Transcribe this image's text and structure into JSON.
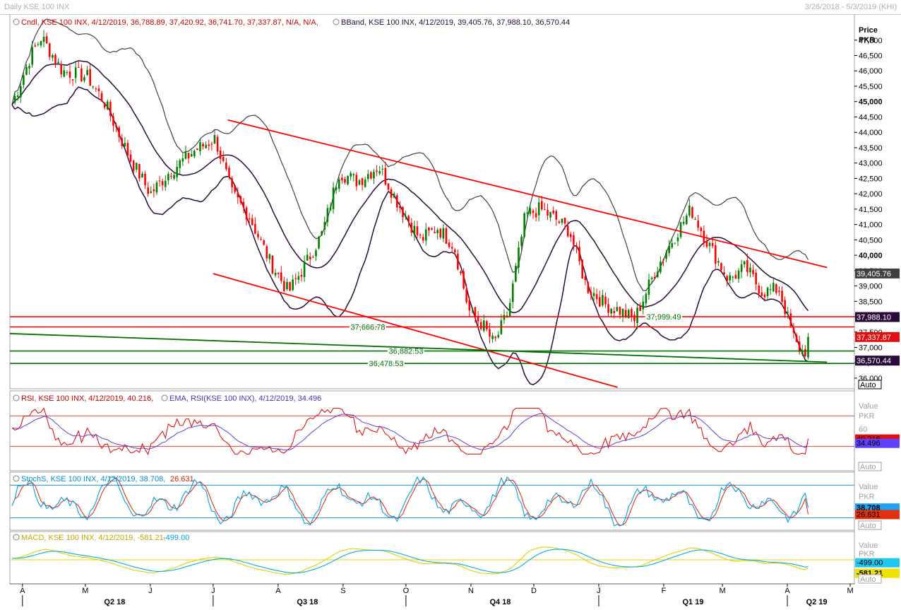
{
  "window": {
    "title": "Daily KSE 100 INX",
    "date_range": "3/26/2018 - 5/3/2019 (KHI)"
  },
  "panels": {
    "price": {
      "legend_cndl": "Cndl, KSE 100 INX, 4/12/2019, 36,788.89, 37,420.92, 36,741.70, 37,337.87, N/A, N/A,",
      "legend_bband": "BBand, KSE 100 INX, 4/12/2019, 39,405.76, 37,988.10, 36,570.44",
      "axis_label_1": "Price",
      "axis_label_2": "PKR",
      "auto_button": "Auto"
    },
    "rsi": {
      "legend_rsi": "RSI, KSE 100 INX, 4/12/2019, 40.216,",
      "legend_ema": "EMA, RSI(KSE 100 INX), 4/12/2019, 34.496",
      "axis_label_1": "Value",
      "axis_label_2": "PKR",
      "tick_60": "60",
      "auto_button": "Auto"
    },
    "stoch": {
      "legend": "StochS, KSE 100 INX, 4/12/2019, 38.708,",
      "legend_2": "26.631",
      "axis_label_1": "Value",
      "axis_label_2": "PKR",
      "auto_button": "Auto"
    },
    "macd": {
      "legend": "MACD, KSE 100 INX, 4/12/2019, -581.21,",
      "legend_2": "-499.00",
      "axis_label_1": "Value",
      "axis_label_2": "PKR",
      "auto_button": "Auto"
    }
  },
  "colors": {
    "up_candle": "#008000",
    "down_candle": "#ff0000",
    "bband_outer": "#404040",
    "bband_mid": "#2a0a3a",
    "trendline": "#ff0000",
    "support": "#007000",
    "rsi": "#e00000",
    "ema": "#6040d0",
    "stoch_k": "#00a0e0",
    "stoch_d": "#e02000",
    "macd": "#00b0e0",
    "signal": "#e0d000"
  },
  "chart_data": [
    {
      "type": "candlestick",
      "name": "Cndl",
      "ylim": [
        35700,
        47800
      ],
      "y_ticks": [
        "47,000",
        "46,500",
        "46,000",
        "45,500",
        "45,000",
        "44,500",
        "44,000",
        "43,500",
        "43,000",
        "42,500",
        "42,000",
        "41,500",
        "41,000",
        "40,500",
        "40,000",
        "39,500",
        "39,000",
        "38,500",
        "38,000",
        "37,500",
        "37,000",
        "36,500",
        "36,000"
      ],
      "last": {
        "date": "4/12/2019",
        "open": 36788.89,
        "high": 37420.92,
        "low": 36741.7,
        "close": 37337.87
      },
      "bband_last": {
        "upper": 39405.76,
        "middle": 37988.1,
        "lower": 36570.44
      },
      "value_labels": {
        "upper": "39,405.76",
        "middle": "37,988.10",
        "close": "37,337.87",
        "lower": "36,570.44"
      },
      "close_path_months": [
        [
          "2018-03-27",
          44900
        ],
        [
          "2018-04-05",
          46500
        ],
        [
          "2018-04-10",
          47100
        ],
        [
          "2018-04-20",
          46000
        ],
        [
          "2018-05-02",
          45800
        ],
        [
          "2018-05-10",
          45000
        ],
        [
          "2018-05-22",
          43200
        ],
        [
          "2018-06-01",
          42000
        ],
        [
          "2018-06-10",
          42700
        ],
        [
          "2018-06-22",
          43400
        ],
        [
          "2018-07-02",
          43800
        ],
        [
          "2018-07-10",
          42000
        ],
        [
          "2018-07-18",
          41300
        ],
        [
          "2018-07-28",
          39800
        ],
        [
          "2018-08-06",
          38800
        ],
        [
          "2018-08-14",
          39700
        ],
        [
          "2018-08-22",
          40700
        ],
        [
          "2018-08-30",
          42700
        ],
        [
          "2018-09-08",
          42400
        ],
        [
          "2018-09-18",
          42900
        ],
        [
          "2018-09-28",
          41600
        ],
        [
          "2018-10-08",
          40500
        ],
        [
          "2018-10-16",
          40900
        ],
        [
          "2018-10-24",
          40300
        ],
        [
          "2018-10-31",
          38200
        ],
        [
          "2018-11-07",
          37700
        ],
        [
          "2018-11-12",
          37100
        ],
        [
          "2018-11-19",
          38200
        ],
        [
          "2018-11-27",
          41300
        ],
        [
          "2018-12-04",
          41500
        ],
        [
          "2018-12-11",
          41200
        ],
        [
          "2018-12-18",
          40800
        ],
        [
          "2018-12-26",
          39000
        ],
        [
          "2019-01-04",
          38400
        ],
        [
          "2019-01-11",
          38200
        ],
        [
          "2019-01-18",
          37900
        ],
        [
          "2019-01-28",
          39500
        ],
        [
          "2019-02-06",
          40600
        ],
        [
          "2019-02-14",
          41500
        ],
        [
          "2019-02-22",
          40400
        ],
        [
          "2019-03-04",
          39200
        ],
        [
          "2019-03-12",
          39600
        ],
        [
          "2019-03-20",
          38800
        ],
        [
          "2019-03-28",
          38900
        ],
        [
          "2019-04-05",
          37100
        ],
        [
          "2019-04-09",
          36800
        ],
        [
          "2019-04-12",
          37337.87
        ]
      ],
      "horizontal_lines": [
        {
          "label": "37,999.49",
          "y": 37999.49,
          "color": "#ff0000"
        },
        {
          "label": "37,666.78",
          "y": 37666.78,
          "color": "#ff0000"
        },
        {
          "label": "36,882.53",
          "y": 36882.53,
          "color": "#007000"
        },
        {
          "label": "36,478.53",
          "y": 36478.53,
          "color": "#007000"
        }
      ],
      "trendlines": [
        {
          "from": [
            "2018-07-08",
            44400
          ],
          "to": [
            "2019-04-20",
            39600
          ],
          "color": "#ff0000"
        },
        {
          "from": [
            "2018-07-01",
            39400
          ],
          "to": [
            "2019-01-10",
            35700
          ],
          "color": "#ff0000"
        },
        {
          "from": [
            "2018-03-26",
            37450
          ],
          "to": [
            "2019-04-20",
            36520
          ],
          "color": "#007000"
        }
      ]
    },
    {
      "type": "line",
      "name": "RSI",
      "series": [
        {
          "name": "RSI",
          "last": 40.216,
          "label": "40.216"
        },
        {
          "name": "EMA",
          "last": 34.496,
          "label": "34.496"
        }
      ],
      "levels": [
        70,
        30
      ]
    },
    {
      "type": "line",
      "name": "StochS",
      "series": [
        {
          "name": "%K",
          "last": 38.708,
          "label": "38.708"
        },
        {
          "name": "%D",
          "last": 26.631,
          "label": "26.631"
        }
      ],
      "levels": [
        80,
        20
      ]
    },
    {
      "type": "line",
      "name": "MACD",
      "series": [
        {
          "name": "MACD",
          "last": -581.21,
          "label": "-581.21"
        },
        {
          "name": "Signal",
          "last": -499.0,
          "label": "-499.00"
        }
      ]
    }
  ],
  "time_axis": {
    "months": [
      {
        "label": "A",
        "date": "2018-04-01"
      },
      {
        "label": "M",
        "date": "2018-05-01"
      },
      {
        "label": "J",
        "date": "2018-06-01"
      },
      {
        "label": "J",
        "date": "2018-07-01"
      },
      {
        "label": "A",
        "date": "2018-08-01"
      },
      {
        "label": "S",
        "date": "2018-09-01"
      },
      {
        "label": "O",
        "date": "2018-10-01"
      },
      {
        "label": "N",
        "date": "2018-11-01"
      },
      {
        "label": "D",
        "date": "2018-12-01"
      },
      {
        "label": "J",
        "date": "2019-01-01"
      },
      {
        "label": "F",
        "date": "2019-02-01"
      },
      {
        "label": "M",
        "date": "2019-03-01"
      },
      {
        "label": "A",
        "date": "2019-04-01"
      },
      {
        "label": "M",
        "date": "2019-05-01"
      }
    ],
    "quarters": [
      {
        "label": "Q2 18",
        "date": "2018-05-15"
      },
      {
        "label": "Q3 18",
        "date": "2018-08-15"
      },
      {
        "label": "Q4 18",
        "date": "2018-11-15"
      },
      {
        "label": "Q1 19",
        "date": "2019-02-15"
      },
      {
        "label": "Q2 19",
        "date": "2019-04-15"
      }
    ]
  }
}
